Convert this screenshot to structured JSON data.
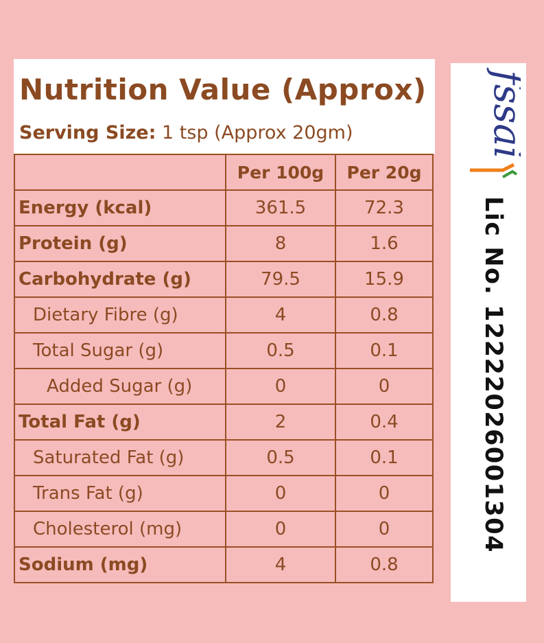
{
  "title": "Nutrition Value (Approx)",
  "serving": {
    "label": "Serving Size:",
    "value": "1 tsp (Approx 20gm)"
  },
  "table": {
    "columns": [
      "",
      "Per 100g",
      "Per 20g"
    ],
    "rows": [
      {
        "name": "Energy (kcal)",
        "per100": "361.5",
        "per20": "72.3",
        "style": "bold"
      },
      {
        "name": "Protein (g)",
        "per100": "8",
        "per20": "1.6",
        "style": "bold"
      },
      {
        "name": "Carbohydrate (g)",
        "per100": "79.5",
        "per20": "15.9",
        "style": "bold"
      },
      {
        "name": "Dietary Fibre (g)",
        "per100": "4",
        "per20": "0.8",
        "style": "sub"
      },
      {
        "name": "Total Sugar (g)",
        "per100": "0.5",
        "per20": "0.1",
        "style": "sub"
      },
      {
        "name": "Added Sugar (g)",
        "per100": "0",
        "per20": "0",
        "style": "subsub"
      },
      {
        "name": "Total Fat (g)",
        "per100": "2",
        "per20": "0.4",
        "style": "bold"
      },
      {
        "name": "Saturated Fat (g)",
        "per100": "0.5",
        "per20": "0.1",
        "style": "sub"
      },
      {
        "name": "Trans Fat (g)",
        "per100": "0",
        "per20": "0",
        "style": "sub"
      },
      {
        "name": "Cholesterol (mg)",
        "per100": "0",
        "per20": "0",
        "style": "sub"
      },
      {
        "name": "Sodium (mg)",
        "per100": "4",
        "per20": "0.8",
        "style": "bold"
      }
    ]
  },
  "license": {
    "logo_text": "fssai",
    "text": "Lic No. 12222026001304"
  },
  "colors": {
    "background": "#f6bcbc",
    "text_brown": "#8b4a22",
    "logo_blue": "#2e3a87",
    "logo_orange": "#f07f1a",
    "logo_green": "#3b9a3b"
  }
}
